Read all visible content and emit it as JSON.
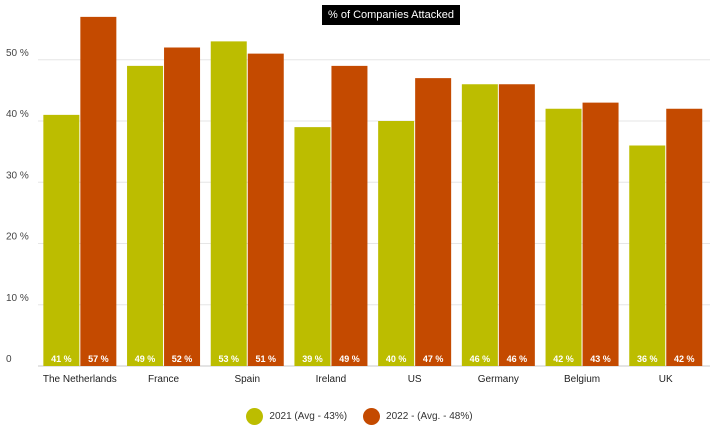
{
  "chart_data": {
    "type": "bar",
    "title": "% of Companies Attacked",
    "xlabel": "",
    "ylabel": "",
    "categories": [
      "The Netherlands",
      "France",
      "Spain",
      "Ireland",
      "US",
      "Germany",
      "Belgium",
      "UK"
    ],
    "series": [
      {
        "name": "2021 (Avg - 43%)",
        "color": "#bcbd00",
        "values": [
          41,
          49,
          53,
          39,
          40,
          46,
          42,
          36
        ]
      },
      {
        "name": "2022 - (Avg. - 48%)",
        "color": "#c44a00",
        "values": [
          57,
          52,
          51,
          49,
          47,
          46,
          43,
          42
        ]
      }
    ],
    "ylim": [
      0,
      57
    ],
    "yticks": [
      0,
      10,
      20,
      30,
      40,
      50
    ],
    "ytick_labels": [
      "0",
      "10 %",
      "20 %",
      "30 %",
      "40 %",
      "50 %"
    ],
    "value_suffix": " %",
    "grid": true,
    "legend_position": "bottom"
  }
}
